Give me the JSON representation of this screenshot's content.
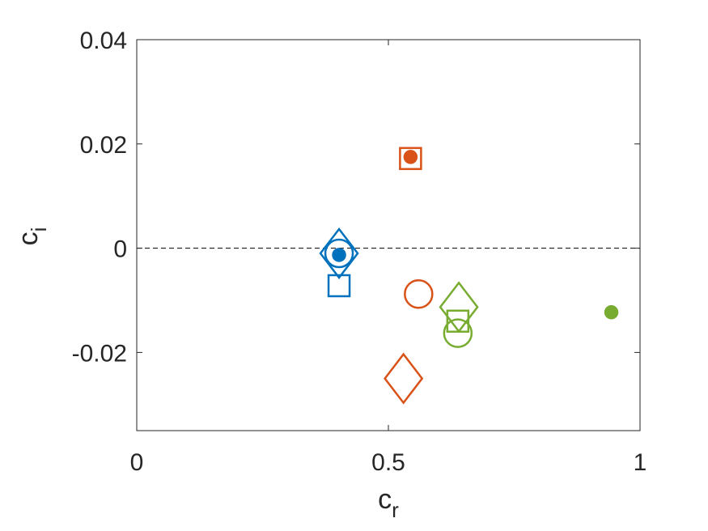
{
  "chart_data": {
    "type": "scatter",
    "title": "",
    "xlabel": {
      "base": "c",
      "sub": "r"
    },
    "ylabel": {
      "base": "c",
      "sub": "i"
    },
    "xlim": [
      0,
      1
    ],
    "ylim": [
      -0.035,
      0.04
    ],
    "xticks": [
      0,
      0.5,
      1
    ],
    "xtick_labels": [
      "0",
      "0.5",
      "1"
    ],
    "yticks": [
      -0.02,
      0,
      0.02,
      0.04
    ],
    "ytick_labels": [
      "-0.02",
      "0",
      "0.02",
      "0.04"
    ],
    "grid": false,
    "reference_line": {
      "y": 0,
      "style": "dashed",
      "color": "#000000"
    },
    "series": [
      {
        "color": "#0072BD",
        "points": [
          {
            "x": 0.402,
            "y": -0.0013,
            "marker": "filled-circle"
          },
          {
            "x": 0.402,
            "y": -0.001,
            "marker": "circle"
          },
          {
            "x": 0.402,
            "y": -0.0072,
            "marker": "square"
          },
          {
            "x": 0.402,
            "y": -0.001,
            "marker": "diamond"
          }
        ]
      },
      {
        "color": "#D95319",
        "points": [
          {
            "x": 0.544,
            "y": 0.0175,
            "marker": "filled-circle"
          },
          {
            "x": 0.544,
            "y": 0.0172,
            "marker": "square"
          },
          {
            "x": 0.56,
            "y": -0.0088,
            "marker": "circle"
          },
          {
            "x": 0.53,
            "y": -0.025,
            "marker": "diamond"
          }
        ]
      },
      {
        "color": "#77AC30",
        "points": [
          {
            "x": 0.943,
            "y": -0.0123,
            "marker": "filled-circle"
          },
          {
            "x": 0.638,
            "y": -0.0163,
            "marker": "circle"
          },
          {
            "x": 0.638,
            "y": -0.014,
            "marker": "square"
          },
          {
            "x": 0.64,
            "y": -0.0113,
            "marker": "diamond"
          }
        ]
      }
    ]
  }
}
